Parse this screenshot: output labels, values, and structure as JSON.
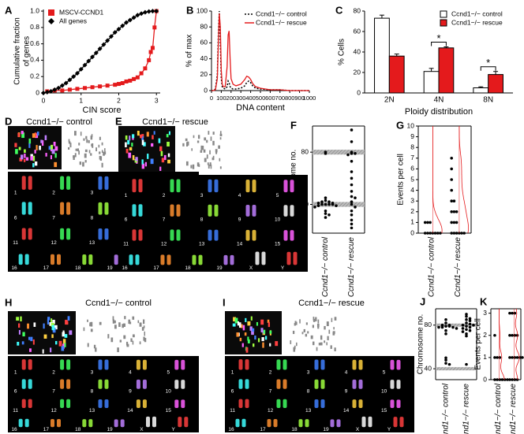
{
  "chart_data": [
    {
      "panel": "A",
      "type": "line",
      "xlabel": "CIN score",
      "ylabel": [
        "Cumulative fraction",
        "of genes"
      ],
      "xlim": [
        0,
        3.1
      ],
      "ylim": [
        0,
        1.02
      ],
      "xticks": [
        0,
        1,
        2,
        3
      ],
      "yticks": [
        0,
        0.2,
        0.4,
        0.6,
        0.8,
        {
          "value": 1,
          "label": "1.0"
        }
      ],
      "legend": "upper left",
      "series": [
        {
          "name": "MSCV-CCND1",
          "color": "#e41a1c",
          "marker": "square",
          "x": [
            0.1,
            0.3,
            0.5,
            0.7,
            0.9,
            1.1,
            1.3,
            1.5,
            1.7,
            1.9,
            2.0,
            2.1,
            2.2,
            2.3,
            2.4,
            2.5,
            2.6,
            2.7,
            2.8,
            2.85,
            2.9,
            2.95,
            3.0
          ],
          "values": [
            0.02,
            0.03,
            0.03,
            0.04,
            0.05,
            0.06,
            0.07,
            0.08,
            0.09,
            0.1,
            0.11,
            0.12,
            0.14,
            0.15,
            0.17,
            0.19,
            0.24,
            0.3,
            0.4,
            0.5,
            0.55,
            0.8,
            1.0
          ]
        },
        {
          "name": "All genes",
          "color": "#000000",
          "marker": "diamond",
          "x": [
            0,
            0.1,
            0.2,
            0.3,
            0.4,
            0.5,
            0.6,
            0.7,
            0.8,
            0.9,
            1.0,
            1.1,
            1.2,
            1.3,
            1.4,
            1.5,
            1.6,
            1.7,
            1.8,
            1.9,
            2.0,
            2.1,
            2.2,
            2.3,
            2.4,
            2.5,
            2.6,
            2.7,
            2.8,
            2.9,
            3.0
          ],
          "values": [
            0,
            0.01,
            0.02,
            0.04,
            0.06,
            0.09,
            0.12,
            0.16,
            0.2,
            0.24,
            0.29,
            0.34,
            0.39,
            0.44,
            0.49,
            0.54,
            0.59,
            0.64,
            0.69,
            0.74,
            0.78,
            0.82,
            0.86,
            0.89,
            0.92,
            0.95,
            0.97,
            0.985,
            0.995,
            1.0,
            1.0
          ]
        }
      ]
    },
    {
      "panel": "B",
      "type": "line",
      "xlabel": "DNA content",
      "ylabel": [
        "% of max"
      ],
      "xlim": [
        0,
        1000
      ],
      "ylim": [
        0,
        100
      ],
      "xticks": [
        0,
        100,
        200,
        300,
        400,
        500,
        600,
        700,
        800,
        900,
        1000
      ],
      "yticks": [
        0,
        20,
        40,
        60,
        80,
        100
      ],
      "legend": "upper right",
      "x": [
        0,
        20,
        40,
        60,
        70,
        80,
        90,
        100,
        110,
        120,
        140,
        160,
        170,
        180,
        190,
        200,
        220,
        250,
        300,
        340,
        360,
        380,
        400,
        420,
        450,
        500,
        600,
        700,
        800,
        900,
        1000
      ],
      "series": [
        {
          "name": "Ccnd1−/− control",
          "color": "#000000",
          "dash": true,
          "values": [
            0,
            0,
            2,
            20,
            70,
            100,
            60,
            15,
            5,
            3,
            2,
            5,
            12,
            10,
            5,
            3,
            2,
            2,
            3,
            6,
            10,
            12,
            10,
            6,
            3,
            2,
            1,
            1,
            0,
            0,
            0
          ]
        },
        {
          "name": "Ccnd1−/− rescue",
          "color": "#e41a1c",
          "values": [
            0,
            0,
            1,
            15,
            60,
            97,
            80,
            25,
            8,
            5,
            5,
            30,
            70,
            75,
            40,
            15,
            8,
            6,
            8,
            14,
            18,
            17,
            14,
            9,
            5,
            3,
            1,
            1,
            0,
            0,
            0
          ]
        }
      ]
    },
    {
      "panel": "C",
      "type": "bar",
      "xlabel": "Ploidy distribution",
      "ylabel": [
        "% Cells"
      ],
      "categories": [
        "2N",
        "4N",
        "8N"
      ],
      "ylim": [
        0,
        80
      ],
      "yticks": [
        0,
        20,
        40,
        60,
        80
      ],
      "legend": "upper right",
      "annotations": [
        "*",
        "*"
      ],
      "series": [
        {
          "name": "Ccnd1−/− control",
          "color": "#ffffff",
          "values": [
            73,
            21,
            5
          ],
          "errors": [
            3,
            3,
            1
          ]
        },
        {
          "name": "Ccnd1−/− rescue",
          "color": "#e41a1c",
          "values": [
            36,
            44,
            18
          ],
          "errors": [
            2,
            1,
            3
          ]
        }
      ]
    },
    {
      "panel": "F",
      "type": "strip",
      "ylabel": [
        "Chromosome no."
      ],
      "categories": [
        "Ccnd1−/− control",
        "Ccnd1−/− rescue"
      ],
      "ylim": [
        18,
        100
      ],
      "yticks": [
        40,
        80
      ],
      "bands": [
        40,
        80
      ],
      "values": [
        [
          80,
          79,
          45,
          43,
          42,
          42,
          41,
          41,
          40,
          40,
          40,
          40,
          39,
          39,
          38,
          35,
          33,
          32,
          30
        ],
        [
          97,
          88,
          80,
          79,
          79,
          78,
          73,
          65,
          60,
          55,
          50,
          46,
          45,
          42,
          40,
          38,
          35,
          32,
          28,
          25,
          22
        ]
      ]
    },
    {
      "panel": "G",
      "type": "strip",
      "ylabel": [
        "Events per cell"
      ],
      "categories": [
        "Ccnd1−/− control",
        "Ccnd1−/− rescue"
      ],
      "ylim": [
        0,
        10
      ],
      "yticks": [
        0,
        1,
        2,
        3,
        4,
        5,
        6,
        7,
        8,
        9,
        10
      ],
      "density_color": "#e41a1c",
      "values": [
        [
          1,
          1,
          1,
          0,
          0,
          0,
          0,
          0,
          0,
          0
        ],
        [
          7,
          6,
          5,
          4,
          3,
          3,
          2,
          2,
          2,
          1,
          1,
          1,
          0,
          0,
          0,
          0,
          0,
          0
        ]
      ]
    },
    {
      "panel": "J",
      "type": "strip",
      "ylabel": [
        "Chromosome no."
      ],
      "categories": [
        "Ccnd1−/− control",
        "Ccnd1−/− rescue"
      ],
      "ylim": [
        30,
        95
      ],
      "yticks": [
        40,
        80
      ],
      "bands": [
        40,
        80
      ],
      "values": [
        [
          85,
          82,
          80,
          80,
          79,
          79,
          78,
          78,
          78,
          77,
          75,
          72,
          50,
          48,
          45,
          44
        ],
        [
          90,
          88,
          86,
          85,
          84,
          82,
          81,
          80,
          80,
          79,
          78,
          77,
          76,
          75,
          74,
          72,
          70,
          44
        ]
      ]
    },
    {
      "panel": "K",
      "type": "strip",
      "ylabel": [
        "Events per cell"
      ],
      "categories": [
        "Ccnd1−/− control",
        "Ccnd1−/− rescue"
      ],
      "ylim": [
        0,
        3.2
      ],
      "yticks": [
        0,
        1,
        2,
        3
      ],
      "density_color": "#e41a1c",
      "values": [
        [
          2,
          1,
          1,
          1,
          0,
          0,
          0,
          0,
          0,
          0
        ],
        [
          3,
          3,
          3,
          2,
          2,
          2,
          2,
          1,
          1,
          1,
          1,
          1,
          1,
          0,
          0,
          0,
          0
        ]
      ]
    }
  ],
  "images": [
    {
      "panel": "D",
      "title": "Ccnd1−/− control",
      "chromosomes": [
        "1",
        "2",
        "3",
        "4",
        "5",
        "6",
        "7",
        "8",
        "9",
        "10",
        "11",
        "12",
        "13",
        "14",
        "15",
        "16",
        "17",
        "18",
        "19",
        "X",
        "Y"
      ]
    },
    {
      "panel": "E",
      "title": "Ccnd1−/− rescue",
      "chromosomes": [
        "1",
        "2",
        "3",
        "4",
        "5",
        "6",
        "7",
        "8",
        "9",
        "10",
        "11",
        "12",
        "13",
        "14",
        "15",
        "16",
        "17",
        "18",
        "19",
        "X",
        "Y"
      ]
    },
    {
      "panel": "H",
      "title": "Ccnd1−/− control",
      "chromosomes": [
        "1",
        "2",
        "3",
        "4",
        "5",
        "6",
        "7",
        "8",
        "9",
        "10",
        "11",
        "12",
        "13",
        "14",
        "15",
        "16",
        "17",
        "18",
        "19",
        "X",
        "Y"
      ]
    },
    {
      "panel": "I",
      "title": "Ccnd1−/− rescue",
      "chromosomes": [
        "1",
        "2",
        "3",
        "4",
        "5",
        "6",
        "7",
        "8",
        "9",
        "10",
        "11",
        "12",
        "13",
        "14",
        "15",
        "16",
        "17",
        "18",
        "19",
        "X",
        "Y"
      ]
    }
  ]
}
